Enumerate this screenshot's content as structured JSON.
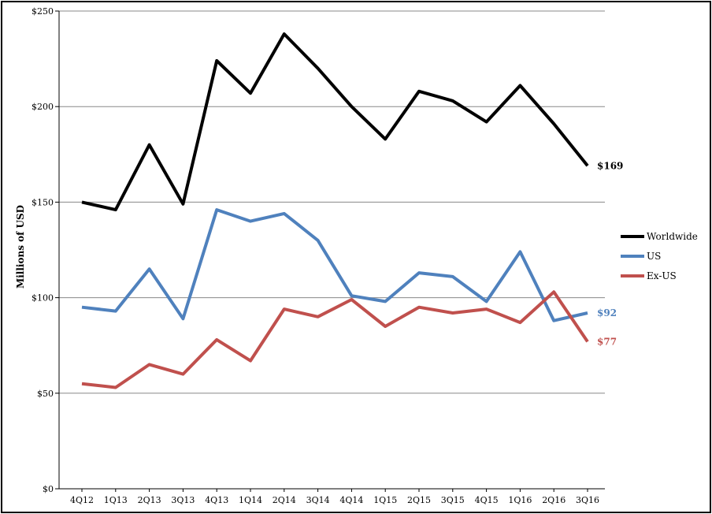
{
  "chart_data": {
    "type": "line",
    "title": "",
    "xlabel": "",
    "ylabel": "Millions of USD",
    "ylim": [
      0,
      250
    ],
    "yticks": [
      0,
      50,
      100,
      150,
      200,
      250
    ],
    "ytick_labels": [
      "$0",
      "$50",
      "$100",
      "$150",
      "$200",
      "$250"
    ],
    "grid": true,
    "legend_position": "right",
    "categories": [
      "4Q12",
      "1Q13",
      "2Q13",
      "3Q13",
      "4Q13",
      "1Q14",
      "2Q14",
      "3Q14",
      "4Q14",
      "1Q15",
      "2Q15",
      "3Q15",
      "4Q15",
      "1Q16",
      "2Q16",
      "3Q16"
    ],
    "series": [
      {
        "name": "Worldwide",
        "color": "#000000",
        "values": [
          150,
          146,
          180,
          149,
          224,
          207,
          238,
          220,
          200,
          183,
          208,
          203,
          192,
          211,
          191,
          169
        ],
        "end_label": "$169"
      },
      {
        "name": "US",
        "color": "#4f81bd",
        "values": [
          95,
          93,
          115,
          89,
          146,
          140,
          144,
          130,
          101,
          98,
          113,
          111,
          98,
          124,
          88,
          92
        ],
        "end_label": "$92"
      },
      {
        "name": "Ex-US",
        "color": "#c0504d",
        "values": [
          55,
          53,
          65,
          60,
          78,
          67,
          94,
          90,
          99,
          85,
          95,
          92,
          94,
          87,
          103,
          77
        ],
        "end_label": "$77"
      }
    ]
  }
}
